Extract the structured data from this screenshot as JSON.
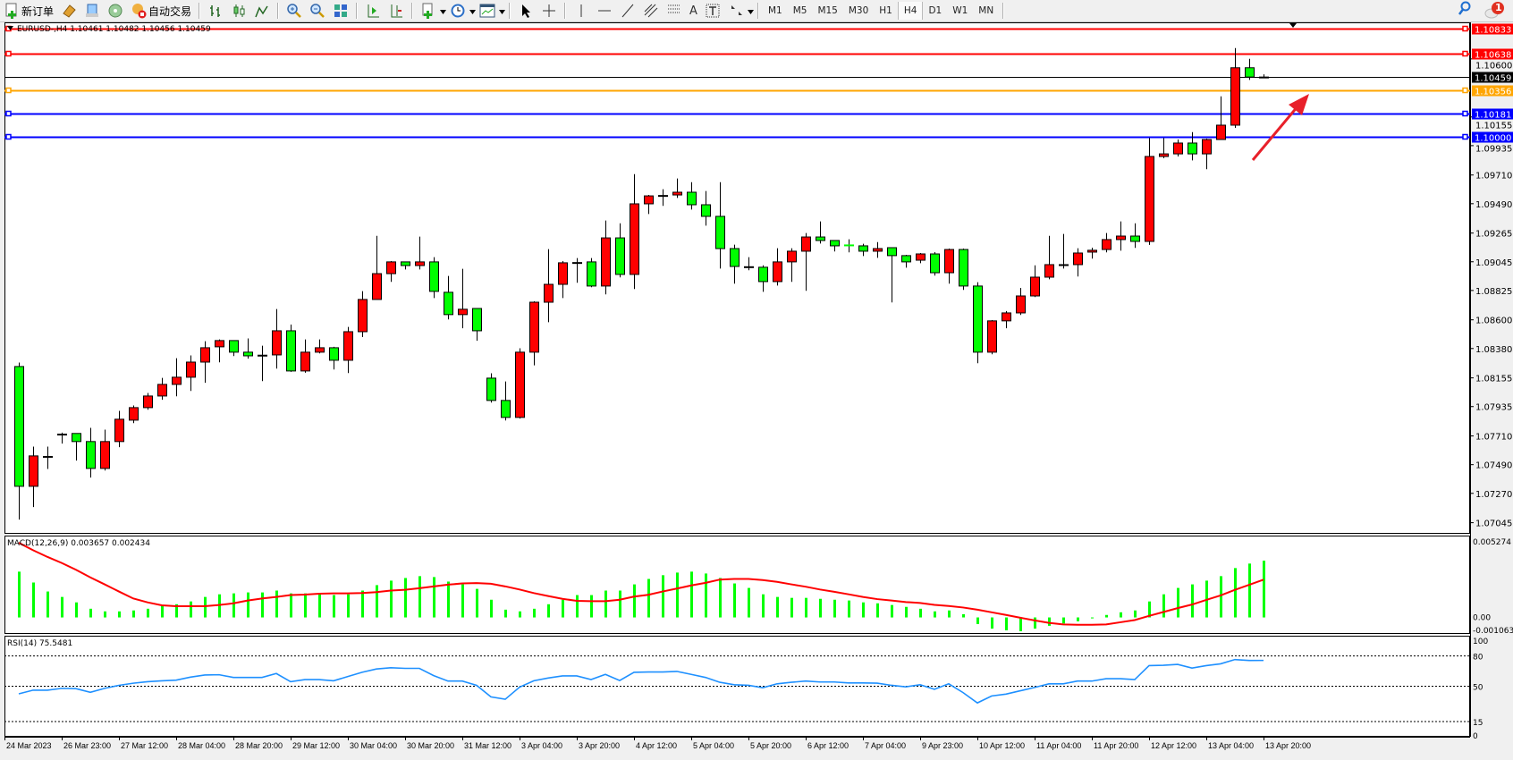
{
  "toolbar": {
    "new_order_label": "新订单",
    "auto_trading_label": "自动交易",
    "icons": [
      "new-order-icon",
      "market-watch-icon",
      "navigator-icon",
      "signals-icon",
      "auto-trading-icon",
      "bar-chart-icon",
      "candlestick-icon",
      "line-chart-icon",
      "zoom-in-icon",
      "zoom-out-icon",
      "tile-windows-icon",
      "auto-scroll-icon",
      "chart-shift-icon",
      "indicators-icon",
      "periods-icon",
      "templates-icon",
      "cursor-icon",
      "crosshair-icon",
      "vertical-line-icon",
      "horizontal-line-icon",
      "trendline-icon",
      "fibonacci-icon",
      "gann-icon",
      "text-icon",
      "text-label-icon",
      "arrows-icon"
    ],
    "text_tool_label": "A",
    "timeframes": [
      "M1",
      "M5",
      "M15",
      "M30",
      "H1",
      "H4",
      "D1",
      "W1",
      "MN"
    ],
    "active_timeframe": "H4",
    "notification_count": "1"
  },
  "chart": {
    "header": "EURUSD-,H4  1.10461 1.10482 1.10456 1.10459",
    "macd_label": "MACD(12,26,9) 0.003657 0.002434",
    "rsi_label": "RSI(14) 75.5481"
  },
  "chart_data": [
    {
      "type": "candlestick",
      "symbol": "EURUSD-",
      "timeframe": "H4",
      "ylim": [
        1.0696,
        1.1088
      ],
      "bull_color": "#ff0000",
      "bear_color": "#00ff00",
      "y_ticks": [
        "1.10600",
        "1.10155",
        "1.09935",
        "1.09710",
        "1.09490",
        "1.09265",
        "1.09045",
        "1.08825",
        "1.08600",
        "1.08380",
        "1.08155",
        "1.07935",
        "1.07710",
        "1.07490",
        "1.07270",
        "1.07045"
      ],
      "x_tick_labels": [
        "24 Mar 2023",
        "26 Mar 23:00",
        "27 Mar 12:00",
        "28 Mar 04:00",
        "28 Mar 20:00",
        "29 Mar 12:00",
        "30 Mar 04:00",
        "30 Mar 20:00",
        "31 Mar 12:00",
        "3 Apr 04:00",
        "3 Apr 20:00",
        "4 Apr 12:00",
        "5 Apr 04:00",
        "5 Apr 20:00",
        "6 Apr 12:00",
        "7 Apr 04:00",
        "9 Apr 23:00",
        "10 Apr 12:00",
        "11 Apr 04:00",
        "11 Apr 20:00",
        "12 Apr 12:00",
        "13 Apr 04:00",
        "13 Apr 20:00"
      ],
      "ohlc": [
        [
          1.08242,
          1.08272,
          1.07069,
          1.07324
        ],
        [
          1.07324,
          1.07628,
          1.07165,
          1.07557
        ],
        [
          1.07553,
          1.07628,
          1.07457,
          1.07553
        ],
        [
          1.07724,
          1.07735,
          1.07651,
          1.07724
        ],
        [
          1.07729,
          1.07729,
          1.07521,
          1.07667
        ],
        [
          1.07667,
          1.07772,
          1.07391,
          1.07461
        ],
        [
          1.07461,
          1.07758,
          1.07445,
          1.07667
        ],
        [
          1.07667,
          1.07902,
          1.07624,
          1.07838
        ],
        [
          1.07831,
          1.07943,
          1.07808,
          1.07927
        ],
        [
          1.07927,
          1.08039,
          1.07911,
          1.08016
        ],
        [
          1.08016,
          1.08155,
          1.07987,
          1.08105
        ],
        [
          1.08105,
          1.08306,
          1.08014,
          1.0816
        ],
        [
          1.0816,
          1.08327,
          1.08055,
          1.08276
        ],
        [
          1.08276,
          1.08436,
          1.08117,
          1.08386
        ],
        [
          1.08393,
          1.0845,
          1.08274,
          1.08441
        ],
        [
          1.08441,
          1.08441,
          1.08322,
          1.08352
        ],
        [
          1.08352,
          1.08457,
          1.08302,
          1.08324
        ],
        [
          1.08329,
          1.08402,
          1.0813,
          1.08329
        ],
        [
          1.08331,
          1.08683,
          1.08226,
          1.08516
        ],
        [
          1.08516,
          1.08564,
          1.08201,
          1.08208
        ],
        [
          1.08208,
          1.0845,
          1.08194,
          1.08352
        ],
        [
          1.08352,
          1.0845,
          1.08343,
          1.08386
        ],
        [
          1.08386,
          1.08393,
          1.08219,
          1.0829
        ],
        [
          1.0829,
          1.08546,
          1.08192,
          1.08509
        ],
        [
          1.08509,
          1.0882,
          1.08468,
          1.08756
        ],
        [
          1.08756,
          1.09244,
          1.08756,
          1.08954
        ],
        [
          1.08954,
          1.0905,
          1.08891,
          1.09044
        ],
        [
          1.09044,
          1.09044,
          1.08986,
          1.09016
        ],
        [
          1.09016,
          1.09238,
          1.08986,
          1.09044
        ],
        [
          1.09044,
          1.0908,
          1.08767,
          1.08818
        ],
        [
          1.08811,
          1.08936,
          1.08603,
          1.0864
        ],
        [
          1.0864,
          1.08991,
          1.08535,
          1.08681
        ],
        [
          1.08687,
          1.08687,
          1.08439,
          1.08516
        ],
        [
          1.08153,
          1.0819,
          1.07966,
          1.07982
        ],
        [
          1.07982,
          1.08128,
          1.07829,
          1.07852
        ],
        [
          1.07852,
          1.08382,
          1.07843,
          1.08352
        ],
        [
          1.08352,
          1.08742,
          1.08251,
          1.08735
        ],
        [
          1.08735,
          1.09142,
          1.08582,
          1.08872
        ],
        [
          1.08872,
          1.0905,
          1.08767,
          1.09037
        ],
        [
          1.09039,
          1.09073,
          1.08884,
          1.09039
        ],
        [
          1.09044,
          1.09073,
          1.0885,
          1.08859
        ],
        [
          1.08859,
          1.09361,
          1.08795,
          1.09228
        ],
        [
          1.09228,
          1.0934,
          1.08925,
          1.08948
        ],
        [
          1.08948,
          1.09717,
          1.08836,
          1.09489
        ],
        [
          1.09489,
          1.09557,
          1.09411,
          1.0955
        ],
        [
          1.09553,
          1.09601,
          1.09473,
          1.09553
        ],
        [
          1.09557,
          1.09683,
          1.09534,
          1.09578
        ],
        [
          1.09578,
          1.09655,
          1.09445,
          1.09482
        ],
        [
          1.09482,
          1.09587,
          1.09322,
          1.09393
        ],
        [
          1.09393,
          1.09655,
          1.08993,
          1.09146
        ],
        [
          1.09146,
          1.09176,
          1.08877,
          1.09009
        ],
        [
          1.09007,
          1.0908,
          1.0898,
          1.09007
        ],
        [
          1.09003,
          1.09018,
          1.08815,
          1.08893
        ],
        [
          1.08893,
          1.09149,
          1.08863,
          1.09044
        ],
        [
          1.09044,
          1.09149,
          1.08891,
          1.09126
        ],
        [
          1.09126,
          1.09265,
          1.08822,
          1.09235
        ],
        [
          1.09235,
          1.09354,
          1.09185,
          1.09208
        ],
        [
          1.09208,
          1.09208,
          1.09124,
          1.09167
        ],
        [
          1.09174,
          1.09217,
          1.09117,
          1.09174
        ],
        [
          1.09167,
          1.09183,
          1.09089,
          1.09126
        ],
        [
          1.09126,
          1.09196,
          1.09075,
          1.09146
        ],
        [
          1.09153,
          1.09153,
          1.08733,
          1.09092
        ],
        [
          1.09092,
          1.09098,
          1.09,
          1.09044
        ],
        [
          1.09057,
          1.09112,
          1.09034,
          1.09105
        ],
        [
          1.09105,
          1.09119,
          1.08939,
          1.08961
        ],
        [
          1.08961,
          1.09146,
          1.08877,
          1.09139
        ],
        [
          1.09139,
          1.09146,
          1.08829,
          1.08859
        ],
        [
          1.08859,
          1.08888,
          1.08267,
          1.08352
        ],
        [
          1.08352,
          1.08598,
          1.08336,
          1.08592
        ],
        [
          1.08592,
          1.08667,
          1.08535,
          1.08653
        ],
        [
          1.08653,
          1.08845,
          1.08637,
          1.08783
        ],
        [
          1.08783,
          1.09018,
          1.08774,
          1.08927
        ],
        [
          1.08927,
          1.09244,
          1.08911,
          1.09023
        ],
        [
          1.09023,
          1.09258,
          1.08993,
          1.09023
        ],
        [
          1.09023,
          1.09149,
          1.08932,
          1.09112
        ],
        [
          1.09119,
          1.09153,
          1.09069,
          1.09133
        ],
        [
          1.09139,
          1.09265,
          1.09117,
          1.09215
        ],
        [
          1.09215,
          1.09354,
          1.0913,
          1.09242
        ],
        [
          1.09242,
          1.0934,
          1.09151,
          1.09201
        ],
        [
          1.09201,
          1.09993,
          1.09174,
          1.09852
        ],
        [
          1.09852,
          1.09993,
          1.09838,
          1.09872
        ],
        [
          1.09872,
          1.09982,
          1.09852,
          1.09955
        ],
        [
          1.09955,
          1.10039,
          1.09822,
          1.09872
        ],
        [
          1.09872,
          1.09989,
          1.09754,
          1.09982
        ],
        [
          1.09982,
          1.10313,
          1.09982,
          1.10092
        ],
        [
          1.10092,
          1.10683,
          1.10071,
          1.10532
        ],
        [
          1.10532,
          1.10601,
          1.10439,
          1.10461
        ],
        [
          1.10461,
          1.10482,
          1.10456,
          1.10459
        ]
      ],
      "horizontal_lines": [
        {
          "price": "1.10833",
          "color": "#ff0000",
          "label_text_color": "#ffffff"
        },
        {
          "price": "1.10638",
          "color": "#ff0000",
          "label_text_color": "#ffffff"
        },
        {
          "price": "1.10459",
          "color": "#000000",
          "label_text_color": "#ffffff"
        },
        {
          "price": "1.10356",
          "color": "#ffa500",
          "label_text_color": "#ffffff"
        },
        {
          "price": "1.10181",
          "color": "#0000ff",
          "label_text_color": "#ffffff"
        },
        {
          "price": "1.10000",
          "color": "#0000ff",
          "label_text_color": "#ffffff"
        }
      ],
      "annotation_arrow": {
        "color": "#e8202a",
        "direction": "up-right"
      }
    },
    {
      "type": "bar+line",
      "indicator": "MACD(12,26,9)",
      "ylim": [
        -0.001063,
        0.005274
      ],
      "y_ticks": [
        "0.005274",
        "0.00",
        "-0.001063"
      ],
      "histogram_color": "#00ff00",
      "signal_color": "#ff0000",
      "macd": [
        0.00295,
        0.00225,
        0.00167,
        0.00132,
        0.00097,
        0.00056,
        0.00039,
        0.00039,
        0.00045,
        0.00056,
        0.00074,
        0.00085,
        0.00103,
        0.00132,
        0.00149,
        0.00155,
        0.00161,
        0.00161,
        0.00173,
        0.00155,
        0.00155,
        0.00149,
        0.00144,
        0.00149,
        0.00173,
        0.00208,
        0.00237,
        0.00254,
        0.00266,
        0.0026,
        0.00231,
        0.00213,
        0.00184,
        0.00114,
        0.0005,
        0.00039,
        0.00056,
        0.00085,
        0.00114,
        0.00144,
        0.00144,
        0.00173,
        0.00173,
        0.00213,
        0.00248,
        0.00272,
        0.00289,
        0.00295,
        0.00283,
        0.00254,
        0.00219,
        0.0019,
        0.00149,
        0.00132,
        0.00126,
        0.00126,
        0.0012,
        0.00114,
        0.00109,
        0.00097,
        0.00091,
        0.0008,
        0.00068,
        0.00056,
        0.00039,
        0.00045,
        0.00021,
        -0.00043,
        -0.00072,
        -0.00083,
        -0.00089,
        -0.00072,
        -0.00054,
        -0.00039,
        -0.00025,
        -6e-05,
        0.00016,
        0.00033,
        0.00045,
        0.00103,
        0.00149,
        0.0019,
        0.00213,
        0.00237,
        0.00266,
        0.00318,
        0.00347,
        0.003657
      ],
      "signal": [
        0.00481,
        0.00433,
        0.0039,
        0.00351,
        0.00307,
        0.00258,
        0.00213,
        0.00167,
        0.00122,
        0.00097,
        0.00078,
        0.00072,
        0.00072,
        0.00072,
        0.0008,
        0.00091,
        0.00109,
        0.00122,
        0.00132,
        0.00144,
        0.00147,
        0.00153,
        0.00155,
        0.00155,
        0.00157,
        0.00163,
        0.00173,
        0.00178,
        0.00188,
        0.002,
        0.00211,
        0.00219,
        0.00221,
        0.00217,
        0.002,
        0.0018,
        0.00157,
        0.00138,
        0.0012,
        0.00107,
        0.00105,
        0.00105,
        0.00114,
        0.00134,
        0.00146,
        0.00167,
        0.00186,
        0.00206,
        0.00223,
        0.00244,
        0.00248,
        0.00248,
        0.00241,
        0.00229,
        0.00213,
        0.00198,
        0.0018,
        0.00165,
        0.00149,
        0.00132,
        0.00118,
        0.00109,
        0.00099,
        0.00093,
        0.00081,
        0.00074,
        0.00064,
        0.0005,
        0.00033,
        0.00016,
        -2e-05,
        -0.00019,
        -0.00035,
        -0.00045,
        -0.00047,
        -0.00047,
        -0.00045,
        -0.00031,
        -0.00017,
        0.0001,
        0.00035,
        0.0006,
        0.00083,
        0.00113,
        0.00142,
        0.00178,
        0.0021,
        0.002434
      ]
    },
    {
      "type": "line",
      "indicator": "RSI(14)",
      "ylim": [
        0,
        100
      ],
      "y_ticks": [
        "100",
        "80",
        "50",
        "15",
        "0"
      ],
      "levels": [
        80,
        50,
        15
      ],
      "line_color": "#1e90ff",
      "values": [
        42.5,
        46.1,
        46.1,
        47.9,
        47.6,
        44,
        47.9,
        50.9,
        53,
        54.5,
        55.4,
        56,
        59,
        61.1,
        61.4,
        58.7,
        58.7,
        58.7,
        62.6,
        54.5,
        56.6,
        56.6,
        55.4,
        59.6,
        63.8,
        67.1,
        68.3,
        67.7,
        67.7,
        60.5,
        55.1,
        55.1,
        50.9,
        39.5,
        37.1,
        49.1,
        55.4,
        58.1,
        60.2,
        60.2,
        56.6,
        61.7,
        55.7,
        63.8,
        64.1,
        64.1,
        64.7,
        61.7,
        58.7,
        53.9,
        51.5,
        50.9,
        48.5,
        52.4,
        53.9,
        55.1,
        54.2,
        54.2,
        53.3,
        53.3,
        53,
        50.9,
        49.4,
        51.5,
        47,
        52.4,
        43.7,
        33.5,
        40.4,
        42.2,
        45.5,
        48.8,
        52.4,
        52.4,
        55.1,
        55.1,
        57.5,
        57.5,
        56.6,
        70.4,
        70.7,
        71.6,
        68,
        70.4,
        72.2,
        76.4,
        75.5,
        75.5481
      ]
    }
  ]
}
